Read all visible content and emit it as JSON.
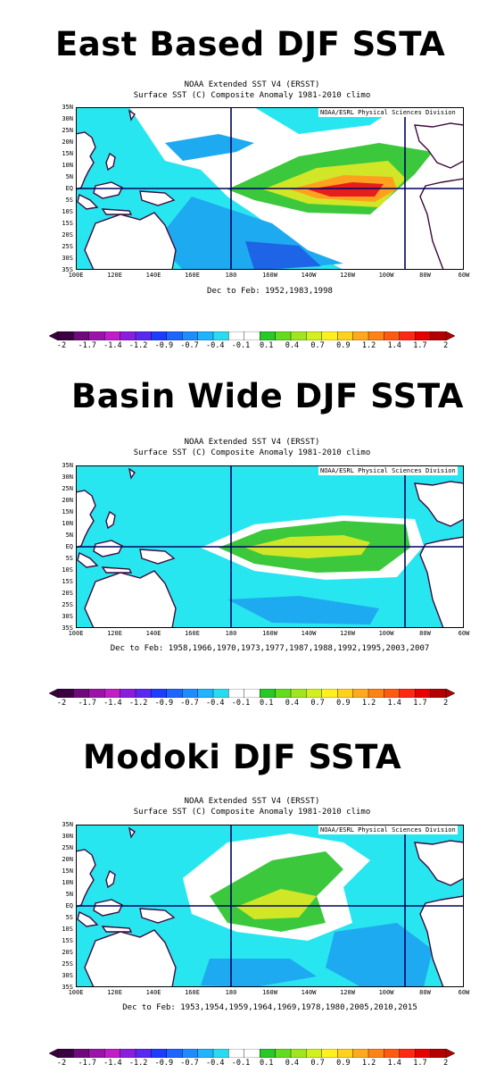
{
  "panels": [
    {
      "heading": "East Based DJF SSTA",
      "header_line1": "NOAA Extended SST V4 (ERSST)",
      "header_line2": "Surface SST (C) Composite Anomaly 1981-2010 climo",
      "credit": "NOAA/ESRL Physical Sciences Division",
      "caption": "Dec to Feb: 1952,1983,1998",
      "pattern": "east-based"
    },
    {
      "heading": "Basin Wide DJF SSTA",
      "header_line1": "NOAA Extended SST V4 (ERSST)",
      "header_line2": "Surface SST (C) Composite Anomaly 1981-2010 climo",
      "credit": "NOAA/ESRL Physical Sciences Division",
      "caption": "Dec to Feb: 1958,1966,1970,1973,1977,1987,1988,1992,1995,2003,2007",
      "pattern": "basin-wide"
    },
    {
      "heading": "Modoki DJF SSTA",
      "header_line1": "NOAA Extended SST V4 (ERSST)",
      "header_line2": "Surface SST (C) Composite Anomaly 1981-2010 climo",
      "credit": "NOAA/ESRL Physical Sciences Division",
      "caption": "Dec to Feb: 1953,1954,1959,1964,1969,1978,1980,2005,2010,2015",
      "pattern": "modoki"
    }
  ],
  "lat_labels": [
    "35N",
    "30N",
    "25N",
    "20N",
    "15N",
    "10N",
    "5N",
    "EQ",
    "5S",
    "10S",
    "15S",
    "20S",
    "25S",
    "30S",
    "35S"
  ],
  "lon_labels": [
    "100E",
    "120E",
    "140E",
    "160E",
    "180",
    "160W",
    "140W",
    "120W",
    "100W",
    "80W",
    "60W"
  ],
  "colorbar": {
    "labels": [
      "-2",
      "-1.7",
      "-1.4",
      "-1.2",
      "-0.9",
      "-0.7",
      "-0.4",
      "-0.1",
      "0.1",
      "0.4",
      "0.7",
      "0.9",
      "1.2",
      "1.4",
      "1.7",
      "2"
    ],
    "colors": [
      "#3a0040",
      "#6e0a7a",
      "#9a14a8",
      "#c01ec8",
      "#8a1ee0",
      "#5a28f0",
      "#1e3cff",
      "#1e64ff",
      "#1e8cff",
      "#1eb4ff",
      "#28dcf0",
      "#ffffff",
      "#ffffff",
      "#28c828",
      "#64dc1e",
      "#a0e61e",
      "#d2f01e",
      "#fff01e",
      "#ffd21e",
      "#ffaa1e",
      "#ff8214",
      "#ff5a14",
      "#ff2814",
      "#e60000",
      "#b40000"
    ]
  },
  "colors": {
    "land_outline": "#3c0a3c",
    "grid_line": "#000060",
    "neutral": "#ffffff",
    "cool_light": "#28e6f0",
    "cool_mid": "#1eaaf0",
    "cool_strong": "#1e64e6",
    "warm_green": "#3cc83c",
    "warm_yellow": "#d2e628",
    "warm_orange": "#ffa01e",
    "warm_red": "#e61e1e"
  }
}
